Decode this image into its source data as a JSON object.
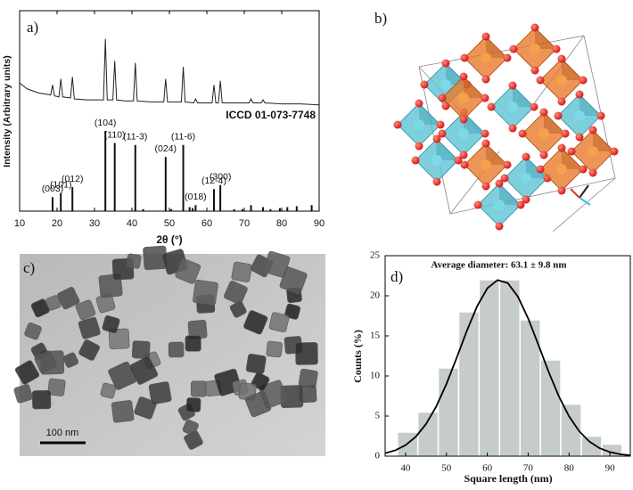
{
  "chart_data": [
    {
      "type": "line",
      "panel_label": "a)",
      "xlabel": "2θ (°)",
      "ylabel": "Intensity (Arbitrary units)",
      "xlim": [
        10,
        90
      ],
      "xticks": [
        10,
        20,
        30,
        40,
        50,
        60,
        70,
        80,
        90
      ],
      "ylim": [
        0,
        100
      ],
      "color": "#222222",
      "x": [
        10,
        12,
        15,
        18.3,
        18.8,
        19.3,
        20.5,
        21.0,
        21.5,
        23.6,
        24.1,
        24.6,
        28,
        32.4,
        32.9,
        33.4,
        34.9,
        35.4,
        35.9,
        38,
        40.4,
        40.9,
        41.4,
        45,
        48.5,
        49.0,
        49.5,
        53.2,
        53.7,
        54.2,
        56.5,
        57.0,
        57.5,
        61.4,
        61.9,
        62.4,
        63.1,
        63.6,
        64.1,
        68,
        71.3,
        71.8,
        72.3,
        74.5,
        75,
        75.5,
        80,
        85,
        90
      ],
      "values": [
        64,
        61,
        59,
        58,
        63,
        57.5,
        57,
        66,
        57,
        56.5,
        67,
        56,
        55.5,
        55.5,
        86,
        55.5,
        55.5,
        75,
        55.5,
        55,
        55,
        74,
        55,
        54.5,
        54.5,
        66,
        54.5,
        54.5,
        72,
        54.5,
        54,
        56,
        54,
        54,
        63,
        54,
        54,
        65,
        54,
        54,
        54,
        56,
        54,
        54,
        55.5,
        54,
        53.5,
        53.5,
        53
      ],
      "reference": {
        "annotation": "ICCD 01-073-7748",
        "color": "#111111",
        "x": [
          18.8,
          21.0,
          24.1,
          32.9,
          35.4,
          40.9,
          43.0,
          49.0,
          50.5,
          53.7,
          55.4,
          56.2,
          57.0,
          61.9,
          63.6,
          67.3,
          69.5,
          71.8,
          75.0,
          77.0,
          79.5,
          81.5,
          84.0,
          88.0
        ],
        "values": [
          7,
          9,
          12,
          40,
          34,
          33,
          1,
          27,
          1,
          33,
          2,
          1.5,
          3,
          11,
          13,
          1,
          1,
          3,
          2,
          1,
          1.5,
          2,
          2.5,
          3
        ],
        "labels": [
          "(003)",
          "(101)",
          "(012)",
          "(104)",
          "(110)",
          "(11-3)",
          null,
          "(024)",
          null,
          "(11-6)",
          null,
          null,
          "(018)",
          "(12-4)",
          "(300)",
          null,
          null,
          null,
          null,
          null,
          null,
          null,
          null,
          null
        ]
      }
    },
    {
      "type": "histogram",
      "panel_label": "d)",
      "title": "Average diameter: 63.1 ± 9.8 nm",
      "xlabel": "Square length (nm)",
      "ylabel": "Counts (%)",
      "bins": [
        38,
        43,
        48,
        53,
        58,
        63,
        68,
        73,
        78,
        83,
        88,
        93
      ],
      "values": [
        3,
        5.5,
        11,
        18,
        22,
        22,
        17,
        12,
        6.5,
        2.5,
        1.5
      ],
      "color": "#c6cbcb",
      "fit": {
        "color": "#000000",
        "x": [
          35,
          37.5,
          40,
          42.5,
          45,
          47.5,
          50,
          52.5,
          55,
          57.5,
          60,
          62.5,
          65,
          67.5,
          70,
          72.5,
          75,
          77.5,
          80,
          82.5,
          85,
          87.5,
          90,
          92.5,
          95
        ],
        "values": [
          0.36,
          0.73,
          1.37,
          2.42,
          4.0,
          6.19,
          9.0,
          12.26,
          15.64,
          18.69,
          20.93,
          21.96,
          21.59,
          19.89,
          17.17,
          13.89,
          10.52,
          7.47,
          4.97,
          3.1,
          1.81,
          0.99,
          0.51,
          0.24,
          0.11
        ]
      },
      "xlim": [
        35,
        95
      ],
      "xticks": [
        40,
        50,
        60,
        70,
        80,
        90
      ],
      "ylim": [
        0,
        25
      ],
      "yticks": [
        0,
        5,
        10,
        15,
        20,
        25
      ]
    }
  ],
  "structure": {
    "label": "b)"
  },
  "micrograph": {
    "label": "c)",
    "scale_bar": "100 nm"
  }
}
